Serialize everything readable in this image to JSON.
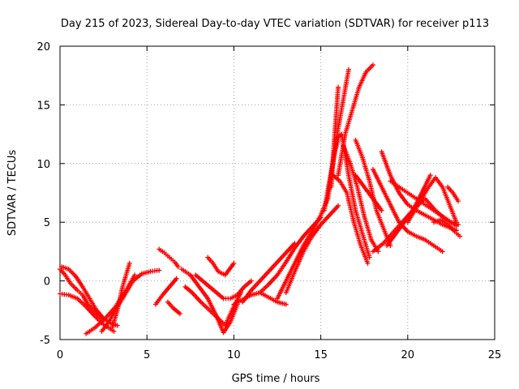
{
  "chart_data": {
    "type": "scatter",
    "title": "Day 215 of 2023, Sidereal Day-to-day VTEC variation (SDTVAR) for receiver p113",
    "xlabel": "GPS time / hours",
    "ylabel": "SDTVAR / TECUs",
    "xlim": [
      0,
      25
    ],
    "ylim": [
      -5,
      20
    ],
    "xticks": [
      0,
      5,
      10,
      15,
      20,
      25
    ],
    "yticks": [
      -5,
      0,
      5,
      10,
      15,
      20
    ],
    "grid": true,
    "marker": "+",
    "color": "#ff0000",
    "series": [
      {
        "x": [
          0.0,
          0.3,
          0.6,
          1.0,
          1.3,
          1.6,
          2.0,
          2.4
        ],
        "y": [
          1.0,
          0.5,
          -0.2,
          -0.8,
          -1.2,
          -2.0,
          -2.6,
          -3.2
        ]
      },
      {
        "x": [
          0.1,
          0.5,
          0.9,
          1.3,
          1.7,
          2.1,
          2.5,
          2.9,
          3.3
        ],
        "y": [
          1.2,
          1.0,
          0.4,
          -0.5,
          -1.5,
          -2.5,
          -3.2,
          -3.6,
          -3.8
        ]
      },
      {
        "x": [
          0.0,
          0.5,
          1.0,
          1.5,
          2.0,
          2.4,
          2.8,
          3.1
        ],
        "y": [
          -1.1,
          -1.2,
          -1.5,
          -2.2,
          -3.0,
          -3.6,
          -4.0,
          -4.3
        ]
      },
      {
        "x": [
          1.5,
          2.0,
          2.6,
          3.2,
          3.8,
          4.3
        ],
        "y": [
          -4.5,
          -4.0,
          -3.2,
          -2.2,
          -0.8,
          0.5
        ]
      },
      {
        "x": [
          2.4,
          2.8,
          3.3,
          3.8,
          4.2,
          4.7,
          5.2,
          5.7
        ],
        "y": [
          -4.3,
          -3.5,
          -2.2,
          -1.0,
          0.0,
          0.6,
          0.8,
          0.9
        ]
      },
      {
        "x": [
          3.0,
          3.3,
          3.6,
          4.0
        ],
        "y": [
          -4.0,
          -2.5,
          -0.5,
          1.5
        ]
      },
      {
        "x": [
          5.5,
          5.9,
          6.3,
          6.7
        ],
        "y": [
          -2.0,
          -1.2,
          -0.5,
          0.2
        ]
      },
      {
        "x": [
          5.7,
          6.0,
          6.3,
          6.6,
          6.8
        ],
        "y": [
          2.7,
          2.4,
          2.0,
          1.6,
          1.2
        ]
      },
      {
        "x": [
          6.2,
          6.5,
          6.9
        ],
        "y": [
          -1.8,
          -2.3,
          -2.8
        ]
      },
      {
        "x": [
          7.0,
          7.5,
          8.0,
          8.5,
          9.0,
          9.4,
          9.8,
          10.2
        ],
        "y": [
          1.0,
          0.5,
          -0.5,
          -1.5,
          -3.0,
          -4.4,
          -3.5,
          -2.0
        ]
      },
      {
        "x": [
          7.2,
          7.6,
          8.1,
          8.6,
          9.1,
          9.5,
          9.9,
          10.4
        ],
        "y": [
          -0.5,
          -1.0,
          -1.8,
          -2.5,
          -3.2,
          -3.8,
          -2.5,
          -1.0
        ]
      },
      {
        "x": [
          7.8,
          8.2,
          8.6,
          9.0,
          9.4,
          9.8,
          10.2,
          10.6,
          11.0
        ],
        "y": [
          0.5,
          0.0,
          -0.5,
          -1.0,
          -1.5,
          -1.5,
          -1.2,
          -0.5,
          0.0
        ]
      },
      {
        "x": [
          8.5,
          8.8,
          9.1,
          9.5,
          10.0
        ],
        "y": [
          2.0,
          1.5,
          0.8,
          0.5,
          1.5
        ]
      },
      {
        "x": [
          10.0,
          10.5,
          11.0,
          11.5,
          12.0,
          12.5,
          13.0
        ],
        "y": [
          -2.0,
          -1.6,
          -1.2,
          -1.0,
          -1.4,
          -1.8,
          -2.0
        ]
      },
      {
        "x": [
          10.5,
          11.0,
          11.5,
          12.0,
          12.5,
          13.0,
          13.5
        ],
        "y": [
          -1.8,
          -0.8,
          0.0,
          0.8,
          1.6,
          2.4,
          3.2
        ]
      },
      {
        "x": [
          11.5,
          12.0,
          12.5,
          13.0,
          13.5,
          14.0,
          14.5,
          15.0
        ],
        "y": [
          -1.0,
          -0.3,
          0.5,
          1.6,
          2.8,
          3.8,
          4.6,
          5.4
        ]
      },
      {
        "x": [
          12.5,
          13.0,
          13.5,
          14.0,
          14.5,
          15.0,
          15.4
        ],
        "y": [
          -1.5,
          0.0,
          1.5,
          3.0,
          4.2,
          5.6,
          7.0
        ]
      },
      {
        "x": [
          13.0,
          13.5,
          14.0,
          14.5,
          15.0,
          15.5,
          16.0
        ],
        "y": [
          -1.0,
          0.8,
          2.5,
          3.8,
          4.8,
          5.6,
          6.4
        ]
      },
      {
        "x": [
          15.2,
          15.5,
          15.8,
          16.0
        ],
        "y": [
          6.0,
          8.5,
          11.0,
          12.0
        ]
      },
      {
        "x": [
          15.4,
          15.7,
          16.0,
          16.3,
          16.6
        ],
        "y": [
          7.0,
          10.0,
          13.0,
          15.5,
          18.0
        ]
      },
      {
        "x": [
          15.6,
          15.8,
          16.0
        ],
        "y": [
          8.0,
          12.5,
          16.5
        ]
      },
      {
        "x": [
          16.0,
          16.4,
          16.8,
          17.2,
          17.6,
          18.0
        ],
        "y": [
          9.0,
          12.5,
          14.5,
          16.5,
          17.8,
          18.4
        ]
      },
      {
        "x": [
          15.8,
          16.2,
          16.6,
          17.0,
          17.4,
          17.8
        ],
        "y": [
          12.0,
          12.5,
          9.0,
          6.0,
          4.0,
          2.0
        ]
      },
      {
        "x": [
          15.7,
          16.1,
          16.5,
          16.9,
          17.3,
          17.7
        ],
        "y": [
          9.0,
          8.5,
          7.5,
          5.0,
          3.0,
          1.5
        ]
      },
      {
        "x": [
          16.3,
          16.7,
          17.1,
          17.5,
          17.9,
          18.3
        ],
        "y": [
          11.5,
          10.0,
          8.0,
          5.5,
          3.5,
          2.5
        ]
      },
      {
        "x": [
          17.0,
          17.4,
          17.8,
          18.2,
          18.6,
          19.0
        ],
        "y": [
          12.0,
          10.5,
          8.5,
          6.0,
          4.5,
          3.0
        ]
      },
      {
        "x": [
          17.0,
          17.5,
          18.0,
          18.5
        ],
        "y": [
          9.0,
          8.0,
          7.0,
          6.0
        ]
      },
      {
        "x": [
          18.0,
          18.5,
          19.0,
          19.5,
          20.0,
          20.5,
          21.0,
          21.5,
          22.0
        ],
        "y": [
          9.5,
          8.0,
          6.5,
          5.0,
          4.2,
          3.8,
          3.5,
          3.0,
          2.5
        ]
      },
      {
        "x": [
          18.5,
          19.0,
          19.5,
          20.0,
          20.5,
          21.0,
          21.5,
          22.0,
          22.5,
          22.8
        ],
        "y": [
          11.0,
          9.0,
          7.5,
          6.5,
          6.0,
          5.6,
          5.2,
          4.8,
          4.5,
          4.3
        ]
      },
      {
        "x": [
          19.0,
          19.5,
          20.0,
          20.5,
          21.0,
          21.5,
          22.0,
          22.5,
          22.9
        ],
        "y": [
          8.5,
          8.0,
          7.5,
          7.0,
          6.5,
          6.0,
          5.5,
          5.0,
          4.8
        ]
      },
      {
        "x": [
          18.8,
          19.3,
          19.8,
          20.3,
          20.8,
          21.3
        ],
        "y": [
          3.0,
          4.0,
          5.0,
          6.0,
          7.5,
          9.0
        ]
      },
      {
        "x": [
          18.0,
          18.6,
          19.2,
          19.8,
          20.4,
          21.0,
          21.6,
          22.2,
          22.8
        ],
        "y": [
          2.5,
          3.2,
          4.2,
          5.2,
          6.2,
          7.0,
          6.0,
          5.2,
          4.7
        ]
      },
      {
        "x": [
          20.0,
          20.4,
          20.8,
          21.2,
          21.6,
          22.0,
          22.4,
          22.8
        ],
        "y": [
          5.0,
          6.0,
          7.0,
          8.0,
          8.8,
          8.0,
          6.5,
          5.0
        ]
      },
      {
        "x": [
          21.5,
          21.9,
          22.3,
          22.7,
          23.0
        ],
        "y": [
          5.0,
          5.2,
          4.8,
          4.2,
          3.8
        ]
      },
      {
        "x": [
          22.3,
          22.6,
          22.9
        ],
        "y": [
          8.0,
          7.5,
          6.8
        ]
      }
    ]
  }
}
